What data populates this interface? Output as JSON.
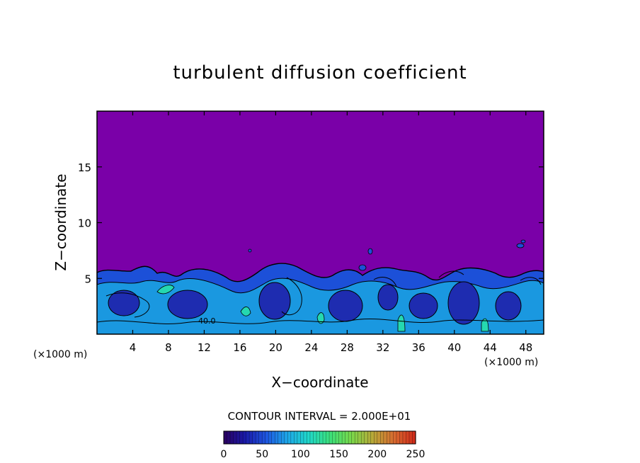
{
  "chart_data": {
    "type": "heatmap",
    "title": "turbulent diffusion coefficient",
    "xlabel": "X−coordinate",
    "ylabel": "Z−coordinate",
    "x_unit": "(×1000 m)",
    "x_unit_right": "(×1000 m)",
    "xlim": [
      0,
      50
    ],
    "ylim": [
      0,
      20
    ],
    "xticks": [
      4,
      8,
      12,
      16,
      20,
      24,
      28,
      32,
      36,
      40,
      44,
      48
    ],
    "xtick_labels": [
      "4",
      "8",
      "12",
      "16",
      "20",
      "24",
      "28",
      "32",
      "36",
      "40",
      "44",
      "48"
    ],
    "yticks": [
      5,
      10,
      15
    ],
    "ytick_labels": [
      "5",
      "10",
      "15"
    ],
    "background_value": 0,
    "background_color": "#7a00a8",
    "contour_interval_text": "CONTOUR INTERVAL = 2.000E+01",
    "contour_interval": 20,
    "inline_label": "40.0",
    "colorbar": {
      "min": 0,
      "max": 250,
      "ticks": [
        0,
        50,
        100,
        150,
        200,
        250
      ],
      "tick_labels": [
        "0",
        "50",
        "100",
        "150",
        "200",
        "250"
      ],
      "colors": [
        "#2a005e",
        "#1a1aa8",
        "#1e56e0",
        "#1ea8e8",
        "#20d8c8",
        "#3ce07a",
        "#7ad84a",
        "#b8a838",
        "#d86a30",
        "#d02818"
      ]
    },
    "grid": false,
    "legend": "none"
  }
}
